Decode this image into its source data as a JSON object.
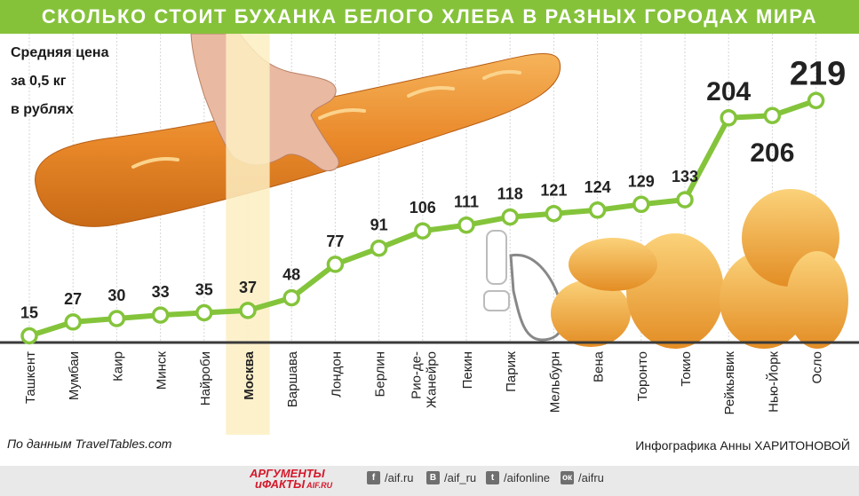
{
  "header": {
    "title": "СКОЛЬКО СТОИТ БУХАНКА БЕЛОГО ХЛЕБА В РАЗНЫХ ГОРОДАХ МИРА"
  },
  "unit_label": {
    "line1": "Средняя цена",
    "line2": "за 0,5 кг",
    "line3": "в рублях"
  },
  "chart_data": {
    "type": "line",
    "title": "СКОЛЬКО СТОИТ БУХАНКА БЕЛОГО ХЛЕБА В РАЗНЫХ ГОРОДАХ МИРА",
    "ylabel": "Средняя цена за 0,5 кг в рублях",
    "xlabel": "",
    "categories": [
      "Ташкент",
      "Мумбаи",
      "Каир",
      "Минск",
      "Найроби",
      "Москва",
      "Варшава",
      "Лондон",
      "Берлин",
      "Рио-де-Жанейро",
      "Пекин",
      "Париж",
      "Мельбурн",
      "Вена",
      "Торонто",
      "Токио",
      "Рейкьявик",
      "Нью-Йорк",
      "Осло"
    ],
    "category_display": [
      "Ташкент",
      "Мумбаи",
      "Каир",
      "Минск",
      "Найроби",
      "Москва",
      "Варшава",
      "Лондон",
      "Берлин",
      "Рио-де-\nЖанейро",
      "Пекин",
      "Париж",
      "Мельбурн",
      "Вена",
      "Торонто",
      "Токио",
      "Рейкьявик",
      "Нью-Йорк",
      "Осло"
    ],
    "values": [
      15,
      27,
      30,
      33,
      35,
      37,
      48,
      77,
      91,
      106,
      111,
      118,
      121,
      124,
      129,
      133,
      204,
      206,
      219
    ],
    "highlight_category": "Москва",
    "line_color": "#84c43b",
    "highlight_color": "#fdeec2",
    "grid": "vertical"
  },
  "source": "По данным TravelTables.com",
  "author": "Инфографика Анны ХАРИТОНОВОЙ",
  "footer": {
    "logo_line1": "АРГУМЕНТЫ",
    "logo_line2": "иФАКТЫ",
    "logo_domain": "AIF.RU",
    "social": [
      {
        "icon": "facebook-icon",
        "glyph": "f",
        "text": "/aif.ru"
      },
      {
        "icon": "vk-icon",
        "glyph": "В",
        "text": "/aif_ru"
      },
      {
        "icon": "twitter-icon",
        "glyph": "t",
        "text": "/aifonline"
      },
      {
        "icon": "odnoklassniki-icon",
        "glyph": "ок",
        "text": "/aifru"
      }
    ]
  }
}
